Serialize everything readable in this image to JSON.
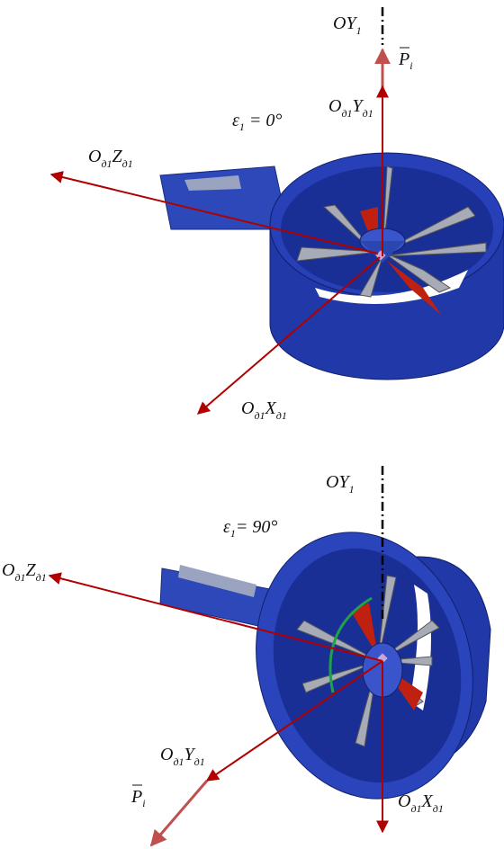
{
  "panels": [
    {
      "oy_label": [
        "OY",
        "1"
      ],
      "force_label": [
        "P",
        "i"
      ],
      "y_axis_label": [
        "O",
        "д1",
        "Y",
        "д1"
      ],
      "angle_label": [
        "ε",
        "1",
        " = 0°"
      ],
      "z_axis_label": [
        "O",
        "д1",
        "Z",
        "д1"
      ],
      "x_axis_label": [
        "O",
        "д1",
        "X",
        "д1"
      ]
    },
    {
      "oy_label": [
        "OY",
        "1"
      ],
      "angle_label": [
        "ε",
        "1",
        "= 90°"
      ],
      "z_axis_label": [
        "O",
        "д1",
        "Z",
        "д1"
      ],
      "y_axis_label": [
        "O",
        "д1",
        "Y",
        "д1"
      ],
      "force_label": [
        "P",
        "i"
      ],
      "x_axis_label": [
        "O",
        "д1",
        "X",
        "д1"
      ]
    }
  ]
}
